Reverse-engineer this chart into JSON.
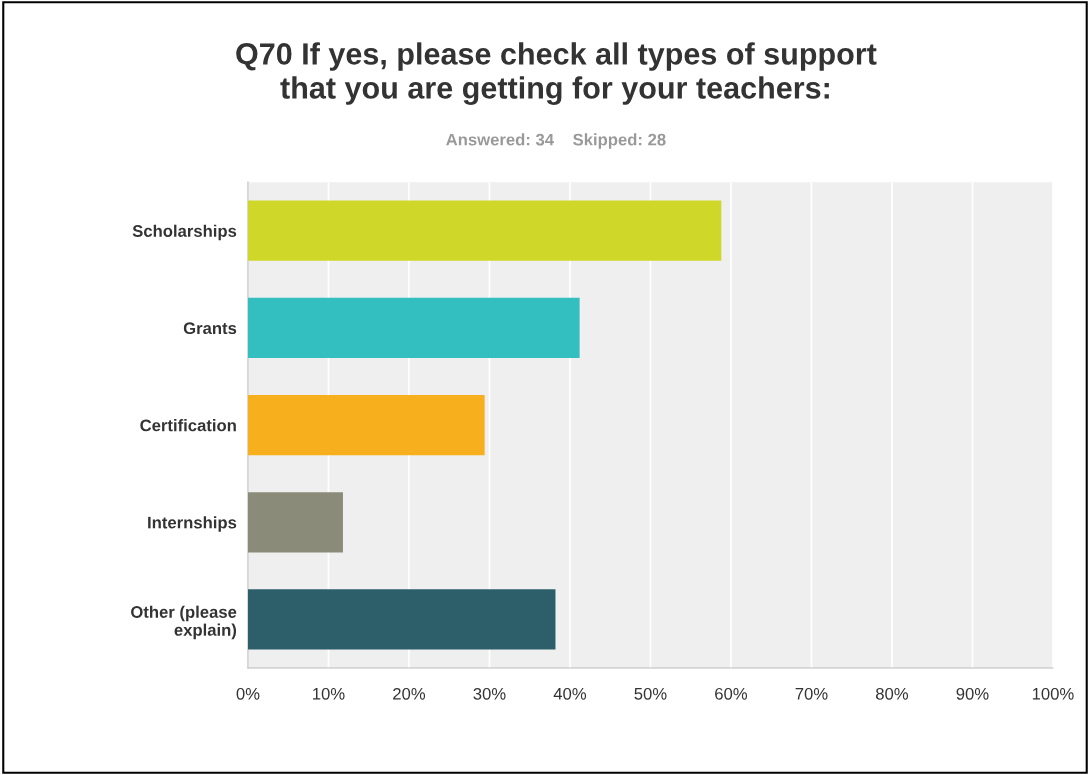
{
  "chart_data": {
    "type": "bar",
    "orientation": "horizontal",
    "title": "Q70 If yes, please check all types of support\nthat you are getting for your teachers:",
    "subtitle": "Answered: 34    Skipped: 28",
    "categories": [
      "Scholarships",
      "Grants",
      "Certification",
      "Internships",
      "Other (please\nexplain)"
    ],
    "values": [
      58.8,
      41.2,
      29.4,
      11.8,
      38.2
    ],
    "colors": [
      "#cfd729",
      "#33bec0",
      "#f7af1e",
      "#8a8b78",
      "#2d5f6b"
    ],
    "xlim": [
      0,
      100
    ],
    "xticks": [
      {
        "value": 0,
        "label": "0%"
      },
      {
        "value": 10,
        "label": "10%"
      },
      {
        "value": 20,
        "label": "20%"
      },
      {
        "value": 30,
        "label": "30%"
      },
      {
        "value": 40,
        "label": "40%"
      },
      {
        "value": 50,
        "label": "50%"
      },
      {
        "value": 60,
        "label": "60%"
      },
      {
        "value": 70,
        "label": "70%"
      },
      {
        "value": 80,
        "label": "80%"
      },
      {
        "value": 90,
        "label": "90%"
      },
      {
        "value": 100,
        "label": "100%"
      }
    ],
    "grid": "x",
    "legend": false
  }
}
